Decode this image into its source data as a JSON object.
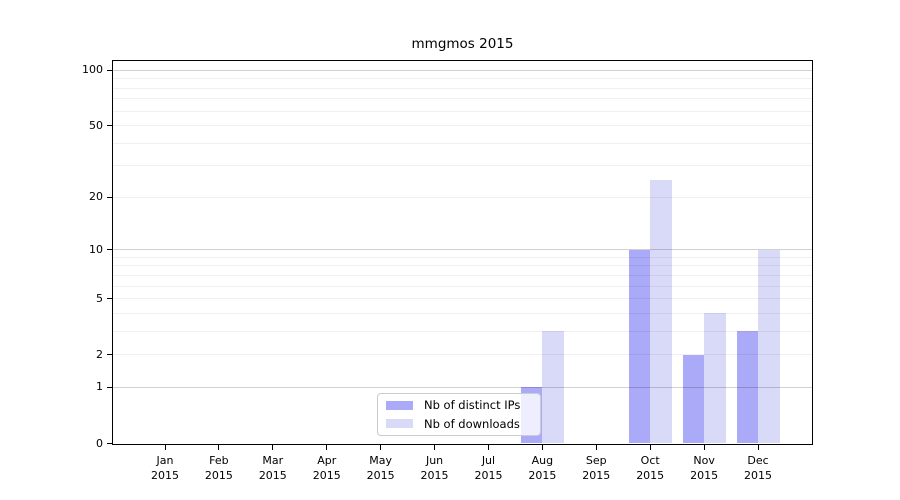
{
  "chart_data": {
    "type": "bar",
    "title": "mmgmos 2015",
    "categories": [
      "Jan",
      "Feb",
      "Mar",
      "Apr",
      "May",
      "Jun",
      "Jul",
      "Aug",
      "Sep",
      "Oct",
      "Nov",
      "Dec"
    ],
    "category_year": "2015",
    "series": [
      {
        "name": "Nb of distinct IPs",
        "color": "#aaaaf8",
        "values": [
          0,
          0,
          0,
          0,
          0,
          0,
          0,
          1,
          0,
          10,
          2,
          3
        ]
      },
      {
        "name": "Nb of downloads",
        "color": "#d9d9f8",
        "values": [
          0,
          0,
          0,
          0,
          0,
          0,
          0,
          3,
          0,
          25,
          4,
          10
        ]
      }
    ],
    "y_axis": {
      "scale": "log(1+y)",
      "tick_labels": [
        0,
        1,
        2,
        5,
        10,
        20,
        50,
        100
      ],
      "major_gridlines": [
        1,
        10,
        100
      ],
      "minor_gridlines": [
        2,
        3,
        4,
        5,
        6,
        7,
        8,
        9,
        20,
        30,
        40,
        50,
        60,
        70,
        80,
        90
      ],
      "top_value": 112
    },
    "xlabel": "",
    "ylabel": "",
    "grid": "on",
    "legend_position": "lower center"
  }
}
